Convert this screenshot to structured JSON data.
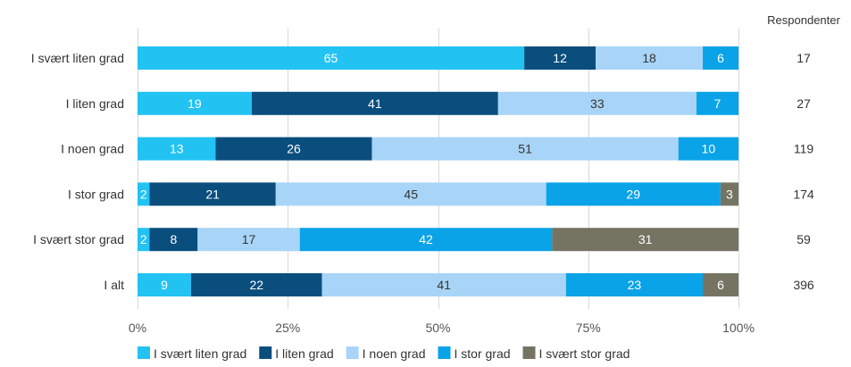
{
  "chart_data": {
    "type": "bar",
    "orientation": "horizontal",
    "stacked": true,
    "categories": [
      "I svært liten grad",
      "I liten grad",
      "I noen grad",
      "I stor grad",
      "I svært stor grad",
      "I alt"
    ],
    "series": [
      {
        "name": "I svært liten grad",
        "color": "#22c3f3",
        "values": [
          65,
          19,
          13,
          2,
          2,
          9
        ]
      },
      {
        "name": "I liten grad",
        "color": "#0a4e7e",
        "values": [
          12,
          41,
          26,
          21,
          8,
          22
        ]
      },
      {
        "name": "I noen grad",
        "color": "#a8d5f7",
        "values": [
          18,
          33,
          51,
          45,
          17,
          41
        ]
      },
      {
        "name": "I stor grad",
        "color": "#0aa3e8",
        "values": [
          6,
          7,
          10,
          29,
          42,
          23
        ]
      },
      {
        "name": "I svært stor grad",
        "color": "#757463",
        "values": [
          0,
          0,
          0,
          3,
          31,
          6
        ]
      }
    ],
    "xlim": [
      0,
      100
    ],
    "xticks": [
      "0%",
      "25%",
      "50%",
      "75%",
      "100%"
    ],
    "grid": true,
    "legend": "bottom",
    "side_column": {
      "title": "Respondenter",
      "values": [
        "17",
        "27",
        "119",
        "174",
        "59",
        "396"
      ]
    },
    "label_colors": {
      "dark_background": "#ffffff",
      "light_background": "#333333"
    }
  }
}
